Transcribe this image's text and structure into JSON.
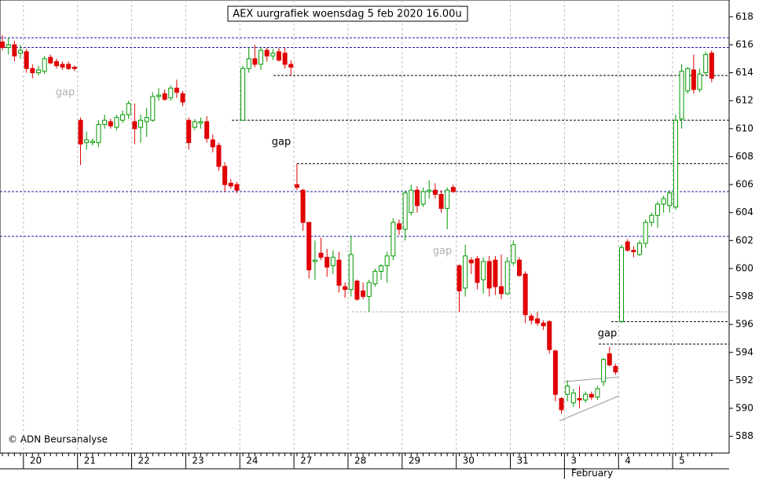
{
  "chart_data": {
    "type": "candlestick",
    "title": "AEX uurgrafiek woensdag 5 feb 2020 16.00u",
    "copyright": "© ADN Beursanalyse",
    "month_label": "February",
    "open": [
      616.2,
      615.8,
      616.0,
      615.4,
      615.5,
      614.3,
      614.0,
      614.1,
      615.1,
      614.8,
      614.6,
      614.6,
      614.4,
      610.6,
      609.0,
      609.0,
      609.0,
      610.3,
      610.5,
      610.1,
      610.6,
      611.0,
      610.5,
      610.1,
      610.5,
      610.6,
      612.3,
      612.5,
      612.2,
      612.9,
      612.5,
      610.6,
      610.1,
      610.4,
      610.5,
      609.2,
      608.8,
      607.3,
      606.1,
      606.0,
      610.6,
      614.3,
      615.0,
      614.6,
      615.6,
      615.2,
      615.5,
      615.4,
      614.6,
      606.0,
      605.6,
      603.3,
      600.5,
      601.1,
      600.8,
      600.2,
      600.6,
      598.7,
      598.5,
      599.1,
      598.4,
      598.0,
      598.9,
      599.8,
      600.2,
      600.9,
      603.2,
      602.8,
      604.0,
      605.6,
      604.6,
      605.5,
      605.6,
      605.3,
      604.3,
      605.8,
      600.2,
      598.6,
      600.6,
      600.7,
      599.2,
      600.5,
      600.6,
      598.7,
      598.2,
      600.4,
      600.6,
      599.6,
      596.6,
      596.4,
      596.1,
      596.2,
      594.1,
      590.7,
      591.0,
      590.4,
      590.7,
      590.6,
      591.0,
      590.8,
      591.9,
      593.9,
      593.0,
      596.2,
      601.9,
      601.3,
      601.0,
      601.8,
      603.3,
      603.8,
      604.6,
      604.5,
      604.4,
      610.7,
      612.7,
      614.2,
      612.8,
      614.0,
      615.4
    ],
    "high": [
      616.7,
      616.5,
      616.3,
      616.0,
      615.7,
      614.6,
      614.5,
      615.2,
      615.3,
      615.0,
      614.8,
      614.8,
      614.5,
      610.8,
      609.8,
      609.3,
      610.6,
      611.0,
      610.7,
      611.0,
      611.3,
      612.0,
      611.8,
      611.0,
      611.5,
      612.6,
      612.9,
      612.8,
      613.1,
      613.5,
      612.7,
      610.8,
      610.7,
      610.8,
      610.9,
      609.6,
      609.0,
      607.6,
      606.4,
      606.2,
      614.5,
      615.8,
      616.0,
      615.8,
      615.8,
      615.7,
      615.8,
      615.8,
      614.9,
      607.5,
      605.7,
      603.3,
      602.0,
      602.2,
      601.4,
      601.3,
      601.2,
      599.0,
      602.3,
      599.2,
      599.0,
      599.2,
      600.0,
      600.3,
      601.2,
      603.6,
      603.5,
      605.6,
      606.0,
      605.9,
      605.8,
      606.3,
      606.1,
      605.6,
      605.8,
      606.0,
      600.3,
      601.7,
      600.8,
      600.9,
      600.8,
      600.9,
      600.9,
      601.0,
      600.8,
      602.0,
      600.8,
      599.8,
      596.8,
      596.9,
      596.3,
      596.3,
      594.2,
      590.8,
      592.0,
      591.4,
      591.6,
      591.2,
      591.2,
      591.6,
      593.6,
      594.4,
      593.2,
      601.7,
      602.1,
      601.6,
      602.0,
      603.5,
      604.0,
      604.8,
      605.2,
      605.6,
      611.0,
      614.6,
      614.4,
      615.3,
      614.3,
      615.5,
      615.6
    ],
    "low": [
      615.6,
      615.3,
      614.8,
      615.0,
      614.0,
      613.6,
      613.8,
      613.9,
      614.6,
      614.3,
      614.2,
      614.2,
      614.1,
      607.4,
      608.5,
      608.8,
      608.7,
      610.0,
      610.0,
      609.9,
      610.4,
      610.7,
      608.9,
      609.0,
      609.4,
      610.5,
      612.0,
      612.0,
      612.0,
      612.2,
      611.6,
      608.5,
      609.9,
      610.0,
      609.0,
      608.3,
      607.0,
      605.5,
      605.7,
      605.4,
      610.6,
      614.0,
      614.4,
      614.2,
      614.8,
      614.9,
      614.8,
      614.3,
      613.8,
      605.6,
      602.7,
      599.3,
      599.2,
      600.6,
      599.4,
      599.6,
      598.3,
      597.9,
      598.0,
      597.7,
      597.8,
      596.9,
      598.7,
      599.2,
      599.0,
      600.6,
      602.4,
      602.0,
      603.8,
      604.0,
      604.4,
      605.0,
      605.0,
      604.0,
      602.8,
      605.4,
      596.9,
      598.0,
      599.6,
      598.5,
      598.2,
      598.0,
      598.1,
      597.8,
      598.1,
      600.2,
      599.4,
      596.1,
      596.0,
      595.9,
      595.6,
      593.9,
      590.5,
      589.6,
      590.5,
      590.1,
      590.0,
      590.4,
      590.6,
      590.6,
      591.6,
      593.0,
      592.4,
      596.1,
      601.2,
      600.8,
      600.9,
      601.5,
      603.0,
      602.9,
      604.0,
      604.0,
      604.2,
      610.0,
      612.5,
      612.5,
      612.6,
      613.8,
      613.3
    ],
    "close": [
      615.8,
      616.0,
      615.2,
      615.6,
      614.3,
      614.0,
      614.2,
      615.0,
      614.7,
      614.5,
      614.4,
      614.3,
      614.3,
      608.9,
      609.2,
      609.1,
      610.3,
      610.6,
      610.2,
      610.8,
      611.0,
      611.8,
      610.0,
      610.6,
      610.8,
      612.3,
      612.4,
      612.1,
      612.9,
      612.6,
      611.9,
      609.0,
      610.5,
      610.5,
      609.3,
      608.7,
      607.3,
      606.0,
      605.9,
      605.6,
      614.3,
      615.0,
      614.6,
      615.6,
      615.2,
      615.4,
      614.9,
      614.6,
      614.4,
      605.8,
      603.3,
      599.9,
      600.6,
      600.8,
      600.1,
      600.8,
      598.8,
      598.5,
      601.0,
      597.8,
      598.0,
      599.0,
      599.8,
      600.2,
      600.9,
      603.3,
      602.8,
      605.4,
      605.6,
      604.5,
      605.5,
      605.6,
      605.3,
      604.3,
      605.6,
      605.5,
      598.4,
      600.9,
      600.4,
      599.0,
      600.5,
      598.6,
      598.7,
      598.2,
      600.5,
      601.7,
      599.5,
      596.7,
      596.3,
      596.1,
      595.9,
      594.2,
      591.0,
      589.9,
      591.6,
      591.1,
      590.6,
      591.0,
      590.8,
      591.4,
      593.5,
      593.1,
      592.6,
      601.5,
      601.3,
      601.2,
      601.8,
      603.3,
      603.8,
      604.6,
      605.0,
      605.4,
      610.6,
      614.1,
      614.3,
      612.8,
      613.9,
      615.3,
      613.6
    ],
    "up_color": "#009a00",
    "down_color": "#e00000",
    "xlim": [
      -0.4,
      120.9
    ],
    "xticks": [
      {
        "value": 4,
        "label": "20"
      },
      {
        "value": 13,
        "label": "21"
      },
      {
        "value": 22,
        "label": "22"
      },
      {
        "value": 31,
        "label": "23"
      },
      {
        "value": 40,
        "label": "24"
      },
      {
        "value": 49,
        "label": "27"
      },
      {
        "value": 58,
        "label": "28"
      },
      {
        "value": 67,
        "label": "29"
      },
      {
        "value": 76,
        "label": "30"
      },
      {
        "value": 85,
        "label": "31"
      },
      {
        "value": 94,
        "label": "3"
      },
      {
        "value": 103,
        "label": "4"
      },
      {
        "value": 112,
        "label": "5"
      }
    ],
    "ylim": [
      586.8,
      619.2
    ],
    "yticks": [
      588,
      590,
      592,
      594,
      596,
      598,
      600,
      602,
      604,
      606,
      608,
      610,
      612,
      614,
      616,
      618
    ],
    "levels": [
      {
        "value": 616.5,
        "color": "#1a1aa0"
      },
      {
        "value": 615.8,
        "color": "#1a1aa0"
      },
      {
        "value": 605.5,
        "color": "#1a1aa0"
      },
      {
        "value": 602.3,
        "color": "#1a1aa0"
      },
      {
        "value": 613.8,
        "color": "#000000"
      },
      {
        "value": 610.6,
        "color": "#000000"
      },
      {
        "value": 607.5,
        "color": "#000000"
      },
      {
        "value": 596.2,
        "color": "#000000"
      },
      {
        "value": 594.6,
        "color": "#000000"
      },
      {
        "value": 596.9,
        "color": "#b0b0b0"
      }
    ],
    "annotations": [
      {
        "text": "gap",
        "color": "#b0b0b0"
      },
      {
        "text": "gap",
        "color": "#000000"
      },
      {
        "text": "gap",
        "color": "#b0b0b0"
      },
      {
        "text": "gap",
        "color": "#000000"
      }
    ]
  }
}
